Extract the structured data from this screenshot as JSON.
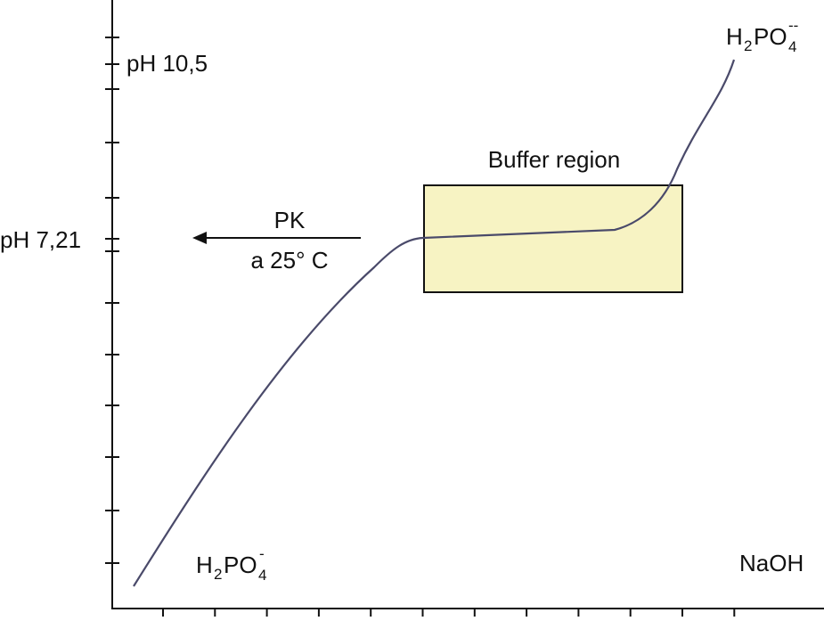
{
  "axis_labels": {
    "upper_ph": "pH 10,5",
    "lower_ph": "pH 7,21",
    "x_reagent": "NaOH"
  },
  "pk_note": {
    "line1": "PK",
    "line2": "a 25° C"
  },
  "buffer_label": "Buffer region",
  "start_species": {
    "base": "H",
    "sub1": "2",
    "mid": "PO",
    "sub2": "4",
    "sup": "-"
  },
  "end_species": {
    "base": "H",
    "sub1": "2",
    "mid": "PO",
    "sub2": "4",
    "sup": "--"
  }
}
